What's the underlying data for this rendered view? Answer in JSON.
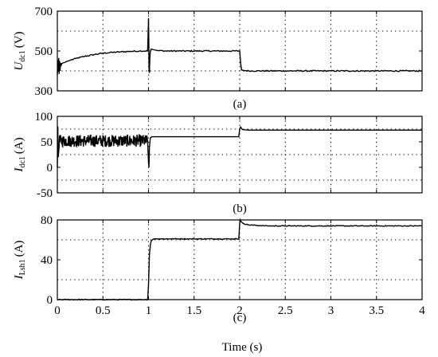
{
  "figure": {
    "xlabel": "Time (s)",
    "x_ticks": [
      "0",
      "0.5",
      "1",
      "1.5",
      "2",
      "2.5",
      "3",
      "3.5",
      "4"
    ]
  },
  "chart_data": [
    {
      "type": "line",
      "panel_label": "(a)",
      "ylabel_main": "U",
      "ylabel_sub": "dc1",
      "ylabel_unit": "(V)",
      "xlim": [
        0,
        4
      ],
      "ylim": [
        300,
        700
      ],
      "y_ticks": [
        300,
        500,
        700
      ],
      "grid_y": [
        400,
        600
      ],
      "grid": "dotted",
      "series": [
        {
          "x": [
            0,
            0.005,
            0.01,
            0.015,
            0.02,
            0.025,
            0.03,
            0.035,
            0.04,
            0.05,
            0.06,
            0.08,
            0.1,
            0.15,
            0.2,
            0.3,
            0.4,
            0.5,
            0.6,
            0.7,
            0.8,
            0.9,
            0.99,
            0.995,
            1.0,
            1.003,
            1.006,
            1.01,
            1.015,
            1.02,
            1.03,
            1.05,
            1.08,
            1.1,
            1.2,
            1.5,
            1.8,
            1.99,
            2.0,
            2.01,
            2.02,
            2.05,
            2.1,
            2.5,
            3,
            3.5,
            4
          ],
          "y": [
            380,
            455,
            395,
            465,
            385,
            450,
            400,
            440,
            425,
            438,
            440,
            442,
            447,
            455,
            462,
            473,
            482,
            489,
            493,
            496,
            498,
            500,
            500,
            580,
            665,
            560,
            405,
            390,
            470,
            497,
            510,
            507,
            504,
            502,
            500,
            500,
            500,
            500,
            500,
            440,
            405,
            402,
            400,
            400,
            400,
            400,
            400
          ]
        }
      ]
    },
    {
      "type": "line",
      "panel_label": "(b)",
      "ylabel_main": "I",
      "ylabel_sub": "dc1",
      "ylabel_unit": "(A)",
      "xlim": [
        0,
        4
      ],
      "ylim": [
        -50,
        100
      ],
      "y_ticks": [
        -50,
        0,
        50,
        100
      ],
      "y_ticks_labels": [
        "-50",
        "0",
        "50",
        "100"
      ],
      "grid_y": [
        -25,
        25,
        75
      ],
      "grid": "dotted",
      "series": [
        {
          "x": [
            0,
            0.005,
            0.01,
            0.02,
            0.03,
            0.04,
            0.05,
            0.1,
            0.3,
            0.5,
            0.8,
            0.99,
            1.0,
            1.005,
            1.01,
            1.02,
            1.04,
            1.1,
            1.5,
            1.99,
            2.0,
            2.01,
            2.03,
            2.1,
            2.5,
            3,
            3.5,
            4
          ],
          "y": [
            0,
            80,
            20,
            75,
            35,
            70,
            55,
            52,
            52,
            53,
            54,
            55,
            10,
            0,
            40,
            58,
            60,
            60,
            60,
            60,
            75,
            79,
            74,
            73,
            73,
            73,
            73,
            73
          ]
        }
      ],
      "noise_interval": [
        0.02,
        0.99
      ],
      "noise_center": 52,
      "noise_amplitude": 12
    },
    {
      "type": "line",
      "panel_label": "(c)",
      "ylabel_main": "I",
      "ylabel_sub": "Lsh1",
      "ylabel_unit": "(A)",
      "xlim": [
        0,
        4
      ],
      "ylim": [
        0,
        80
      ],
      "y_ticks": [
        0,
        40,
        80
      ],
      "grid_y": [
        20,
        60
      ],
      "grid": "dotted",
      "series": [
        {
          "x": [
            0,
            0.99,
            1.0,
            1.01,
            1.02,
            1.03,
            1.04,
            1.06,
            1.1,
            1.5,
            1.99,
            2.0,
            2.005,
            2.01,
            2.03,
            2.05,
            2.1,
            2.3,
            2.5,
            3,
            3.5,
            4
          ],
          "y": [
            0,
            0,
            15,
            45,
            55,
            59,
            60,
            61,
            61,
            61,
            61,
            76,
            80,
            79,
            77,
            76,
            75,
            74,
            74,
            74,
            74,
            74
          ]
        }
      ]
    }
  ]
}
